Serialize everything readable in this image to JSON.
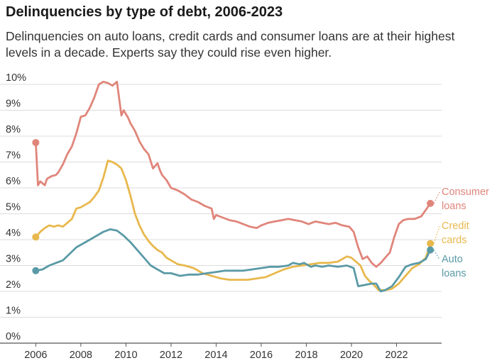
{
  "title": "Delinquencies by type of debt, 2006-2023",
  "subtitle": "Delinquencies on auto loans, credit cards and consumer loans are at their highest levels in a decade. Experts say they could rise even higher.",
  "chart_data": {
    "type": "line",
    "title": "Delinquencies by type of debt, 2006-2023",
    "xlabel": "",
    "ylabel": "",
    "xlim": [
      2005.8,
      2024.0
    ],
    "ylim": [
      0,
      10.3
    ],
    "grid": true,
    "x_ticks": [
      2006,
      2008,
      2010,
      2012,
      2014,
      2016,
      2018,
      2020,
      2022
    ],
    "y_ticks": [
      0,
      1,
      2,
      3,
      4,
      5,
      6,
      7,
      8,
      9,
      10
    ],
    "y_tick_labels": [
      "0%",
      "1%",
      "2%",
      "3%",
      "4%",
      "5%",
      "6%",
      "7%",
      "8%",
      "9%",
      "10%"
    ],
    "series": [
      {
        "name": "Consumer loans",
        "label_lines": [
          "Consumer",
          "loans"
        ],
        "color": "#e0857a",
        "x": [
          2006.0,
          2006.1,
          2006.2,
          2006.4,
          2006.5,
          2006.7,
          2006.9,
          2007.0,
          2007.2,
          2007.4,
          2007.6,
          2007.8,
          2008.0,
          2008.2,
          2008.4,
          2008.6,
          2008.8,
          2009.0,
          2009.2,
          2009.4,
          2009.6,
          2009.8,
          2009.9,
          2010.1,
          2010.2,
          2010.4,
          2010.6,
          2010.8,
          2011.0,
          2011.2,
          2011.4,
          2011.5,
          2011.6,
          2011.8,
          2012.0,
          2012.3,
          2012.6,
          2012.9,
          2013.2,
          2013.5,
          2013.8,
          2013.9,
          2014.0,
          2014.3,
          2014.6,
          2014.9,
          2015.2,
          2015.5,
          2015.8,
          2016.0,
          2016.3,
          2016.6,
          2016.9,
          2017.2,
          2017.5,
          2017.8,
          2018.1,
          2018.4,
          2018.7,
          2019.0,
          2019.3,
          2019.6,
          2019.9,
          2020.1,
          2020.3,
          2020.5,
          2020.7,
          2020.9,
          2021.1,
          2021.3,
          2021.5,
          2021.7,
          2021.9,
          2022.1,
          2022.3,
          2022.5,
          2022.8,
          2023.1,
          2023.3,
          2023.5
        ],
        "values": [
          7.75,
          6.1,
          6.25,
          6.1,
          6.35,
          6.45,
          6.5,
          6.6,
          6.9,
          7.3,
          7.6,
          8.1,
          8.75,
          8.8,
          9.1,
          9.5,
          10.0,
          10.1,
          10.05,
          9.95,
          10.1,
          8.8,
          9.0,
          8.7,
          8.5,
          8.2,
          7.8,
          7.5,
          7.3,
          6.75,
          6.95,
          6.7,
          6.5,
          6.3,
          6.0,
          5.9,
          5.75,
          5.55,
          5.45,
          5.3,
          5.2,
          4.8,
          4.95,
          4.85,
          4.75,
          4.7,
          4.6,
          4.5,
          4.45,
          4.55,
          4.65,
          4.7,
          4.75,
          4.8,
          4.75,
          4.7,
          4.6,
          4.7,
          4.65,
          4.6,
          4.65,
          4.55,
          4.5,
          4.3,
          3.7,
          3.25,
          3.35,
          3.1,
          2.95,
          3.1,
          3.3,
          3.5,
          4.1,
          4.6,
          4.75,
          4.8,
          4.8,
          4.9,
          5.15,
          5.4
        ]
      },
      {
        "name": "Credit cards",
        "label_lines": [
          "Credit",
          "cards"
        ],
        "color": "#e8b84d",
        "x": [
          2006.0,
          2006.2,
          2006.4,
          2006.6,
          2006.8,
          2007.0,
          2007.2,
          2007.4,
          2007.6,
          2007.8,
          2008.0,
          2008.2,
          2008.4,
          2008.6,
          2008.8,
          2009.0,
          2009.2,
          2009.4,
          2009.6,
          2009.8,
          2010.0,
          2010.2,
          2010.4,
          2010.6,
          2010.8,
          2011.0,
          2011.2,
          2011.4,
          2011.6,
          2011.8,
          2012.0,
          2012.3,
          2012.6,
          2013.0,
          2013.4,
          2013.8,
          2014.2,
          2014.6,
          2015.0,
          2015.4,
          2015.8,
          2016.2,
          2016.6,
          2017.0,
          2017.4,
          2017.8,
          2018.2,
          2018.6,
          2019.0,
          2019.4,
          2019.8,
          2020.0,
          2020.2,
          2020.4,
          2020.6,
          2020.8,
          2021.0,
          2021.2,
          2021.5,
          2021.8,
          2022.1,
          2022.4,
          2022.7,
          2023.0,
          2023.3,
          2023.5
        ],
        "values": [
          4.1,
          4.3,
          4.45,
          4.55,
          4.5,
          4.55,
          4.5,
          4.65,
          4.8,
          5.2,
          5.25,
          5.35,
          5.45,
          5.65,
          5.9,
          6.4,
          7.05,
          7.0,
          6.9,
          6.75,
          6.3,
          5.7,
          5.0,
          4.55,
          4.2,
          3.95,
          3.75,
          3.6,
          3.5,
          3.3,
          3.2,
          3.05,
          3.0,
          2.9,
          2.7,
          2.6,
          2.5,
          2.45,
          2.45,
          2.45,
          2.5,
          2.55,
          2.7,
          2.85,
          2.95,
          3.0,
          3.05,
          3.1,
          3.1,
          3.15,
          3.35,
          3.3,
          3.15,
          3.0,
          2.6,
          2.4,
          2.25,
          2.05,
          2.05,
          2.1,
          2.3,
          2.6,
          2.9,
          3.05,
          3.3,
          3.85
        ]
      },
      {
        "name": "Auto loans",
        "label_lines": [
          "Auto",
          "loans"
        ],
        "color": "#5a9aa6",
        "x": [
          2006.0,
          2006.3,
          2006.6,
          2006.9,
          2007.2,
          2007.5,
          2007.8,
          2008.1,
          2008.4,
          2008.7,
          2009.0,
          2009.3,
          2009.6,
          2009.9,
          2010.2,
          2010.5,
          2010.8,
          2011.1,
          2011.4,
          2011.7,
          2012.0,
          2012.4,
          2012.8,
          2013.2,
          2013.6,
          2014.0,
          2014.4,
          2014.8,
          2015.2,
          2015.6,
          2016.0,
          2016.4,
          2016.8,
          2017.2,
          2017.4,
          2017.7,
          2017.9,
          2018.2,
          2018.4,
          2018.7,
          2019.0,
          2019.4,
          2019.8,
          2020.1,
          2020.3,
          2020.6,
          2020.9,
          2021.1,
          2021.3,
          2021.5,
          2021.8,
          2022.1,
          2022.4,
          2022.7,
          2023.0,
          2023.3,
          2023.5
        ],
        "values": [
          2.8,
          2.85,
          3.0,
          3.1,
          3.2,
          3.45,
          3.7,
          3.85,
          4.0,
          4.15,
          4.3,
          4.4,
          4.35,
          4.15,
          3.9,
          3.6,
          3.3,
          3.0,
          2.85,
          2.7,
          2.7,
          2.6,
          2.65,
          2.65,
          2.7,
          2.75,
          2.8,
          2.8,
          2.8,
          2.85,
          2.9,
          2.95,
          2.95,
          3.0,
          3.1,
          3.05,
          3.1,
          2.95,
          3.0,
          2.95,
          3.0,
          2.95,
          3.0,
          2.9,
          2.2,
          2.25,
          2.3,
          2.3,
          2.0,
          2.05,
          2.2,
          2.55,
          2.95,
          3.05,
          3.1,
          3.25,
          3.6
        ]
      }
    ]
  }
}
